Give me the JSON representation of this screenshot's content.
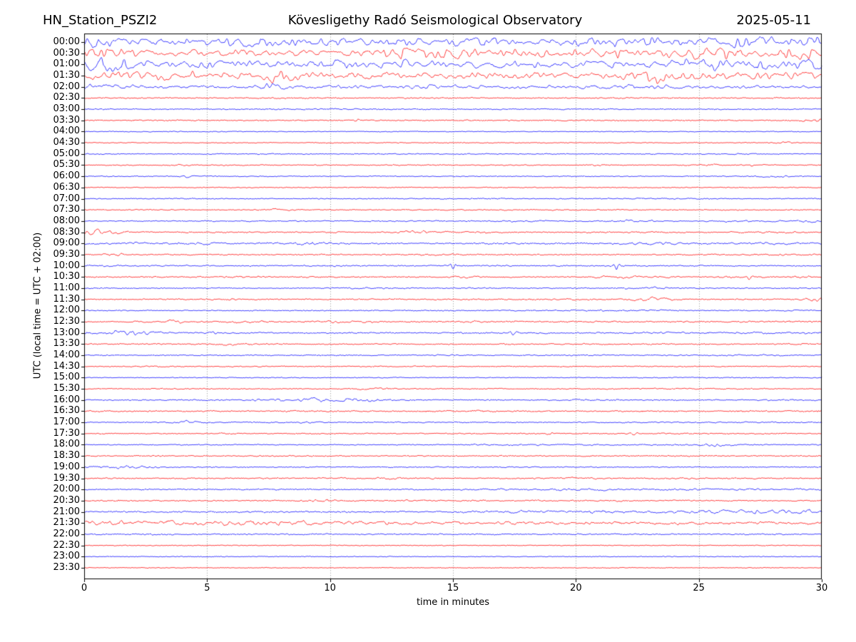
{
  "header": {
    "station": "HN_Station_PSZI2",
    "observatory": "Kövesligethy Radó Seismological Observatory",
    "date": "2025-05-11"
  },
  "axes": {
    "xlabel": "time in minutes",
    "ylabel": "UTC (local time = UTC + 02:00)"
  },
  "chart_data": {
    "type": "line",
    "subtype": "helicorder-seismogram",
    "title": "Kövesligethy Radó Seismological Observatory",
    "title_left": "HN_Station_PSZI2",
    "title_right": "2025-05-11",
    "xlabel": "time in minutes",
    "ylabel": "UTC (local time = UTC + 02:00)",
    "xlim": [
      0,
      30
    ],
    "x_ticks": [
      0,
      5,
      10,
      15,
      20,
      25,
      30
    ],
    "grid": "vertical-dotted-every-5-minutes",
    "grid_color": "#777777",
    "trace_colors": {
      "even_rows": "#0000ff",
      "odd_rows": "#ff0000"
    },
    "row_duration_minutes": 30,
    "rows": [
      {
        "label": "00:00",
        "color": "#0000ff",
        "fuzz": 1.0,
        "wiggle": 4.2,
        "bursts": [
          [
            0.4,
            0.6,
            2.5
          ],
          [
            7,
            1.5,
            1
          ],
          [
            16,
            1,
            1.5
          ],
          [
            21.5,
            1.5,
            1.5
          ],
          [
            28,
            1.5,
            1.5
          ]
        ]
      },
      {
        "label": "00:30",
        "color": "#ff0000",
        "fuzz": 0.9,
        "wiggle": 3.8,
        "bursts": [
          [
            0.3,
            0.5,
            2.5
          ],
          [
            13.4,
            0.7,
            2.5
          ],
          [
            15.3,
            0.5,
            2
          ],
          [
            21.4,
            0.6,
            2
          ],
          [
            24.9,
            0.8,
            2.5
          ],
          [
            29.4,
            0.6,
            3
          ]
        ]
      },
      {
        "label": "01:00",
        "color": "#0000ff",
        "fuzz": 0.9,
        "wiggle": 4.2,
        "bursts": [
          [
            0.25,
            0.4,
            5
          ],
          [
            1.2,
            0.8,
            2.5
          ],
          [
            13,
            1,
            1.5
          ],
          [
            25,
            1,
            2
          ],
          [
            29.6,
            0.5,
            3.5
          ]
        ]
      },
      {
        "label": "01:30",
        "color": "#ff0000",
        "fuzz": 0.9,
        "wiggle": 3.6,
        "bursts": [
          [
            0.3,
            0.6,
            3
          ],
          [
            3.6,
            1,
            2
          ],
          [
            7.75,
            0.35,
            5
          ],
          [
            8.6,
            0.7,
            2
          ],
          [
            23.3,
            0.5,
            4
          ],
          [
            24,
            0.6,
            3
          ],
          [
            29,
            1,
            1.5
          ]
        ]
      },
      {
        "label": "02:00",
        "color": "#0000ff",
        "fuzz": 0.8,
        "wiggle": 1.6,
        "bursts": [
          [
            0.5,
            1,
            1
          ],
          [
            7.5,
            0.35,
            3
          ],
          [
            8.2,
            0.6,
            1.2
          ],
          [
            13,
            1.5,
            0.8
          ],
          [
            17,
            1.5,
            0.8
          ],
          [
            21,
            1.5,
            1
          ],
          [
            23,
            1,
            0.8
          ]
        ]
      },
      {
        "label": "02:30",
        "color": "#ff0000",
        "fuzz": 0.9,
        "wiggle": 0.35,
        "bursts": []
      },
      {
        "label": "03:00",
        "color": "#0000ff",
        "fuzz": 0.8,
        "wiggle": 0.3,
        "bursts": [
          [
            10.5,
            1.5,
            0.3
          ]
        ]
      },
      {
        "label": "03:30",
        "color": "#ff0000",
        "fuzz": 0.85,
        "wiggle": 0.3,
        "bursts": [
          [
            11.3,
            0.35,
            1.6
          ],
          [
            14.9,
            0.8,
            0.4
          ],
          [
            29.6,
            0.4,
            1.4
          ]
        ]
      },
      {
        "label": "04:00",
        "color": "#0000ff",
        "fuzz": 0.6,
        "wiggle": 0.25,
        "bursts": []
      },
      {
        "label": "04:30",
        "color": "#ff0000",
        "fuzz": 0.65,
        "wiggle": 0.25,
        "bursts": [
          [
            28.6,
            0.3,
            1.1
          ]
        ]
      },
      {
        "label": "05:00",
        "color": "#0000ff",
        "fuzz": 0.7,
        "wiggle": 0.3,
        "bursts": [
          [
            26,
            2,
            0.3
          ]
        ]
      },
      {
        "label": "05:30",
        "color": "#ff0000",
        "fuzz": 0.75,
        "wiggle": 0.3,
        "bursts": [
          [
            3.9,
            0.3,
            0.9
          ],
          [
            20.7,
            0.4,
            0.9
          ],
          [
            25.3,
            0.4,
            1.1
          ],
          [
            27.2,
            0.5,
            0.6
          ]
        ]
      },
      {
        "label": "06:00",
        "color": "#0000ff",
        "fuzz": 0.7,
        "wiggle": 0.3,
        "bursts": [
          [
            4.2,
            0.3,
            0.9
          ],
          [
            28.1,
            0.5,
            1.2
          ]
        ]
      },
      {
        "label": "06:30",
        "color": "#ff0000",
        "fuzz": 0.65,
        "wiggle": 0.25,
        "bursts": []
      },
      {
        "label": "07:00",
        "color": "#0000ff",
        "fuzz": 0.75,
        "wiggle": 0.3,
        "bursts": [
          [
            24,
            4,
            0.3
          ]
        ]
      },
      {
        "label": "07:30",
        "color": "#ff0000",
        "fuzz": 0.75,
        "wiggle": 0.3,
        "bursts": [
          [
            7.9,
            0.4,
            1.1
          ],
          [
            16,
            2.5,
            0.25
          ]
        ]
      },
      {
        "label": "08:00",
        "color": "#0000ff",
        "fuzz": 0.75,
        "wiggle": 0.35,
        "bursts": [
          [
            12.7,
            0.9,
            0.55
          ],
          [
            17.6,
            1.2,
            0.6
          ],
          [
            22.3,
            0.7,
            1.3
          ],
          [
            27.6,
            1.5,
            0.7
          ],
          [
            29.6,
            0.4,
            0.7
          ]
        ]
      },
      {
        "label": "08:30",
        "color": "#ff0000",
        "fuzz": 0.85,
        "wiggle": 0.4,
        "bursts": [
          [
            0.25,
            0.5,
            2.2
          ],
          [
            1,
            0.5,
            1.2
          ],
          [
            13.4,
            0.6,
            1.2
          ],
          [
            15.6,
            0.8,
            0.7
          ],
          [
            22.5,
            1,
            0.45
          ],
          [
            28,
            1,
            0.7
          ]
        ]
      },
      {
        "label": "09:00",
        "color": "#0000ff",
        "fuzz": 1.0,
        "wiggle": 0.5,
        "bursts": [
          [
            1.5,
            1,
            0.9
          ],
          [
            5,
            0.5,
            1.1
          ],
          [
            8.6,
            0.8,
            0.9
          ],
          [
            23,
            1.5,
            0.5
          ],
          [
            27,
            2,
            0.5
          ]
        ]
      },
      {
        "label": "09:30",
        "color": "#ff0000",
        "fuzz": 0.85,
        "wiggle": 0.35,
        "bursts": [
          [
            1.3,
            0.4,
            1.1
          ],
          [
            14.5,
            1,
            0.45
          ],
          [
            28,
            1.5,
            0.55
          ]
        ]
      },
      {
        "label": "10:00",
        "color": "#0000ff",
        "fuzz": 0.85,
        "wiggle": 0.4,
        "bursts": [
          [
            1,
            1.5,
            0.5
          ],
          [
            15,
            0.09,
            4.5
          ],
          [
            16.6,
            0.3,
            0.7
          ],
          [
            21.65,
            0.09,
            5
          ]
        ]
      },
      {
        "label": "10:30",
        "color": "#ff0000",
        "fuzz": 0.85,
        "wiggle": 0.4,
        "bursts": [
          [
            6.5,
            0.8,
            0.7
          ],
          [
            15.5,
            0.5,
            0.5
          ],
          [
            21.7,
            0.8,
            0.9
          ],
          [
            23.1,
            0.8,
            0.9
          ],
          [
            25.9,
            0.3,
            0.7
          ],
          [
            27.05,
            0.1,
            4
          ],
          [
            28.6,
            0.8,
            0.6
          ]
        ]
      },
      {
        "label": "11:00",
        "color": "#0000ff",
        "fuzz": 0.8,
        "wiggle": 0.35,
        "bursts": [
          [
            11.6,
            0.6,
            0.9
          ],
          [
            22.7,
            0.8,
            1.4
          ],
          [
            25,
            1,
            0.45
          ]
        ]
      },
      {
        "label": "11:30",
        "color": "#ff0000",
        "fuzz": 0.85,
        "wiggle": 0.35,
        "bursts": [
          [
            6,
            0.5,
            0.5
          ],
          [
            17,
            2,
            0.35
          ],
          [
            23,
            0.8,
            2
          ],
          [
            29.7,
            0.45,
            1.8
          ]
        ]
      },
      {
        "label": "12:00",
        "color": "#0000ff",
        "fuzz": 0.8,
        "wiggle": 0.3,
        "bursts": [
          [
            21.2,
            1.5,
            0.5
          ],
          [
            23.4,
            0.4,
            0.7
          ],
          [
            28.6,
            0.5,
            0.5
          ]
        ]
      },
      {
        "label": "12:30",
        "color": "#ff0000",
        "fuzz": 0.95,
        "wiggle": 0.45,
        "bursts": [
          [
            2,
            0.3,
            1.3
          ],
          [
            3.6,
            0.5,
            1.8
          ],
          [
            6.9,
            0.6,
            1.3
          ],
          [
            10.9,
            0.8,
            1.3
          ],
          [
            15.6,
            0.5,
            0.7
          ]
        ]
      },
      {
        "label": "13:00",
        "color": "#0000ff",
        "fuzz": 0.95,
        "wiggle": 0.55,
        "bursts": [
          [
            0.6,
            1.5,
            1
          ],
          [
            2.1,
            0.8,
            1.6
          ],
          [
            5.1,
            0.5,
            0.9
          ],
          [
            17.45,
            0.1,
            3
          ],
          [
            23.6,
            0.8,
            0.7
          ],
          [
            28,
            2,
            0.45
          ]
        ]
      },
      {
        "label": "13:30",
        "color": "#ff0000",
        "fuzz": 0.85,
        "wiggle": 0.35,
        "bursts": [
          [
            5.95,
            0.4,
            1.1
          ],
          [
            22.5,
            1.5,
            0.4
          ],
          [
            29,
            0.5,
            0.5
          ]
        ]
      },
      {
        "label": "14:00",
        "color": "#0000ff",
        "fuzz": 0.75,
        "wiggle": 0.3,
        "bursts": [
          [
            14.45,
            0.3,
            1.1
          ],
          [
            27.4,
            0.8,
            0.55
          ]
        ]
      },
      {
        "label": "14:30",
        "color": "#ff0000",
        "fuzz": 0.75,
        "wiggle": 0.3,
        "bursts": [
          [
            2.5,
            1,
            0.3
          ]
        ]
      },
      {
        "label": "15:00",
        "color": "#0000ff",
        "fuzz": 0.65,
        "wiggle": 0.25,
        "bursts": []
      },
      {
        "label": "15:30",
        "color": "#ff0000",
        "fuzz": 0.75,
        "wiggle": 0.3,
        "bursts": [
          [
            3.5,
            0.5,
            0.45
          ],
          [
            11.75,
            0.6,
            1.1
          ],
          [
            16.5,
            0.5,
            0.45
          ],
          [
            25,
            3,
            0.25
          ]
        ]
      },
      {
        "label": "16:00",
        "color": "#0000ff",
        "fuzz": 0.85,
        "wiggle": 0.4,
        "bursts": [
          [
            6.95,
            0.3,
            1.2
          ],
          [
            8.6,
            0.8,
            1.1
          ],
          [
            9.8,
            0.8,
            1.4
          ],
          [
            11.6,
            0.5,
            0.9
          ],
          [
            28.6,
            1,
            0.55
          ]
        ]
      },
      {
        "label": "16:30",
        "color": "#ff0000",
        "fuzz": 0.95,
        "wiggle": 0.4,
        "bursts": [
          [
            15.9,
            0.5,
            0.55
          ]
        ]
      },
      {
        "label": "17:00",
        "color": "#0000ff",
        "fuzz": 0.75,
        "wiggle": 0.3,
        "bursts": [
          [
            4.15,
            0.4,
            1.9
          ],
          [
            9.3,
            0.3,
            0.9
          ],
          [
            25,
            3,
            0.28
          ]
        ]
      },
      {
        "label": "17:30",
        "color": "#ff0000",
        "fuzz": 0.75,
        "wiggle": 0.3,
        "bursts": [
          [
            5.35,
            0.3,
            0.7
          ],
          [
            19.1,
            0.4,
            0.9
          ],
          [
            22.35,
            0.12,
            2
          ],
          [
            26,
            2,
            0.35
          ]
        ]
      },
      {
        "label": "18:00",
        "color": "#0000ff",
        "fuzz": 0.75,
        "wiggle": 0.3,
        "bursts": [
          [
            20,
            3,
            0.28
          ],
          [
            25.65,
            0.5,
            1.4
          ]
        ]
      },
      {
        "label": "18:30",
        "color": "#ff0000",
        "fuzz": 0.85,
        "wiggle": 0.3,
        "bursts": []
      },
      {
        "label": "19:00",
        "color": "#0000ff",
        "fuzz": 0.75,
        "wiggle": 0.3,
        "bursts": [
          [
            0.65,
            0.3,
            1.1
          ],
          [
            1.45,
            0.6,
            1.4
          ],
          [
            2.6,
            0.5,
            0.7
          ]
        ]
      },
      {
        "label": "19:30",
        "color": "#ff0000",
        "fuzz": 0.85,
        "wiggle": 0.35,
        "bursts": [
          [
            12.25,
            0.4,
            0.9
          ],
          [
            14.05,
            0.3,
            0.7
          ],
          [
            20.35,
            0.8,
            0.9
          ],
          [
            24.35,
            0.4,
            0.9
          ],
          [
            27,
            1,
            0.45
          ]
        ]
      },
      {
        "label": "20:00",
        "color": "#0000ff",
        "fuzz": 0.85,
        "wiggle": 0.4,
        "bursts": [
          [
            17,
            1,
            0.45
          ],
          [
            21,
            1,
            0.45
          ],
          [
            25,
            4,
            0.45
          ],
          [
            28.6,
            1,
            0.55
          ]
        ]
      },
      {
        "label": "20:30",
        "color": "#ff0000",
        "fuzz": 0.85,
        "wiggle": 0.35,
        "bursts": [
          [
            9.75,
            0.5,
            1.2
          ],
          [
            13,
            0.5,
            0.45
          ],
          [
            20,
            3,
            0.28
          ]
        ]
      },
      {
        "label": "21:00",
        "color": "#0000ff",
        "fuzz": 0.95,
        "wiggle": 0.6,
        "bursts": [
          [
            17,
            2,
            0.55
          ],
          [
            21,
            2,
            0.75
          ],
          [
            24,
            1.5,
            0.75
          ],
          [
            26.5,
            1,
            0.9
          ],
          [
            28.6,
            1.5,
            1.4
          ],
          [
            29.85,
            0.3,
            1.3
          ]
        ]
      },
      {
        "label": "21:30",
        "color": "#ff0000",
        "fuzz": 1.0,
        "wiggle": 1.3,
        "bursts": [
          [
            0.4,
            1,
            1.3
          ],
          [
            2.2,
            2,
            0.9
          ],
          [
            5,
            2,
            0.8
          ],
          [
            8,
            2,
            0.7
          ],
          [
            12,
            2,
            0.5
          ],
          [
            16,
            2,
            0.4
          ],
          [
            20,
            2,
            0.35
          ],
          [
            25,
            2,
            0.25
          ]
        ]
      },
      {
        "label": "22:00",
        "color": "#0000ff",
        "fuzz": 0.85,
        "wiggle": 0.45,
        "bursts": []
      },
      {
        "label": "22:30",
        "color": "#ff0000",
        "fuzz": 0.65,
        "wiggle": 0.2,
        "bursts": []
      },
      {
        "label": "23:00",
        "color": "#0000ff",
        "fuzz": 0.65,
        "wiggle": 0.2,
        "bursts": []
      },
      {
        "label": "23:30",
        "color": "#ff0000",
        "fuzz": 0.6,
        "wiggle": 0.18,
        "bursts": []
      }
    ]
  }
}
